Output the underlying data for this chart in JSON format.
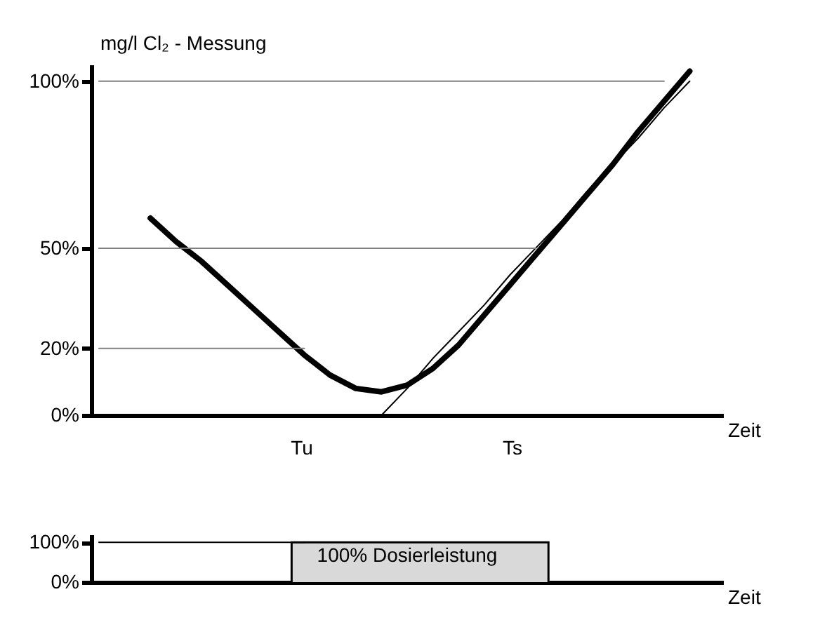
{
  "chart_data": [
    {
      "type": "line",
      "ylabel": "mg/l Cl₂ - Messung",
      "xlabel": "Zeit",
      "ylim": [
        0,
        105
      ],
      "yticks": [
        {
          "value": 0,
          "label": "0%"
        },
        {
          "value": 20,
          "label": "20%"
        },
        {
          "value": 50,
          "label": "50%"
        },
        {
          "value": 100,
          "label": "100%"
        }
      ],
      "tick_labels": "y",
      "grid": false,
      "marker": "none",
      "line_style": "solid",
      "annotations": [
        "Tu",
        "Ts"
      ],
      "categories": [
        null,
        null,
        null,
        null,
        null,
        null,
        null,
        null,
        null,
        null,
        null,
        null,
        null,
        null,
        null,
        null,
        null,
        null,
        null,
        null,
        null,
        null,
        null,
        null,
        null
      ],
      "series": [
        {
          "color": "#000000",
          "values": [
            null,
            null,
            59,
            52,
            46,
            39,
            32,
            25,
            18,
            12,
            8,
            7,
            9,
            14,
            21,
            30,
            39,
            48,
            57,
            66,
            75,
            85,
            94,
            103,
            null
          ]
        },
        {
          "color": "#000000",
          "values": [
            null,
            null,
            null,
            null,
            null,
            null,
            null,
            null,
            null,
            null,
            null,
            0,
            8,
            17,
            25,
            33,
            42,
            50,
            58,
            67,
            75,
            83,
            92,
            100,
            null
          ]
        },
        {
          "color": "#808080",
          "values": [
            20,
            20,
            20,
            20,
            20,
            20,
            20,
            20,
            20,
            null,
            null,
            null,
            null,
            null,
            null,
            null,
            null,
            null,
            null,
            null,
            null,
            null,
            null,
            null,
            null
          ]
        },
        {
          "color": "#808080",
          "values": [
            50,
            50,
            50,
            50,
            50,
            50,
            50,
            50,
            50,
            50,
            50,
            50,
            50,
            50,
            50,
            50,
            50,
            50,
            null,
            null,
            null,
            null,
            null,
            null,
            null
          ]
        },
        {
          "color": "#808080",
          "values": [
            100,
            100,
            100,
            100,
            100,
            100,
            100,
            100,
            100,
            100,
            100,
            100,
            100,
            100,
            100,
            100,
            100,
            100,
            100,
            100,
            100,
            100,
            100,
            null,
            null
          ]
        }
      ]
    },
    {
      "type": "area",
      "xlabel": "Zeit",
      "ylim": [
        0,
        120
      ],
      "yticks": [
        {
          "value": 0,
          "label": "0%"
        },
        {
          "value": 100,
          "label": "100%"
        }
      ],
      "tick_labels": "y",
      "grid": false,
      "marker": "none",
      "line_style": "solid",
      "annotations": [
        "100% Dosierleistung"
      ],
      "categories": [
        null,
        null,
        null,
        null,
        null,
        null,
        null,
        null,
        null,
        null,
        null,
        null,
        null,
        null,
        null,
        null,
        null,
        null,
        null,
        null,
        null,
        null,
        null,
        null,
        null
      ],
      "series": [
        {
          "color": "#d9d9d9",
          "values": [
            0,
            0,
            0,
            0,
            0,
            0,
            0,
            0,
            100,
            100,
            100,
            100,
            100,
            100,
            100,
            100,
            100,
            100,
            0,
            0,
            0,
            0,
            0,
            0,
            0
          ]
        },
        {
          "type": "line",
          "color": "#000000",
          "values": [
            100,
            100,
            100,
            100,
            100,
            100,
            100,
            100,
            100,
            null,
            null,
            null,
            null,
            null,
            null,
            null,
            null,
            null,
            null,
            null,
            null,
            null,
            null,
            null,
            null
          ]
        }
      ]
    }
  ]
}
